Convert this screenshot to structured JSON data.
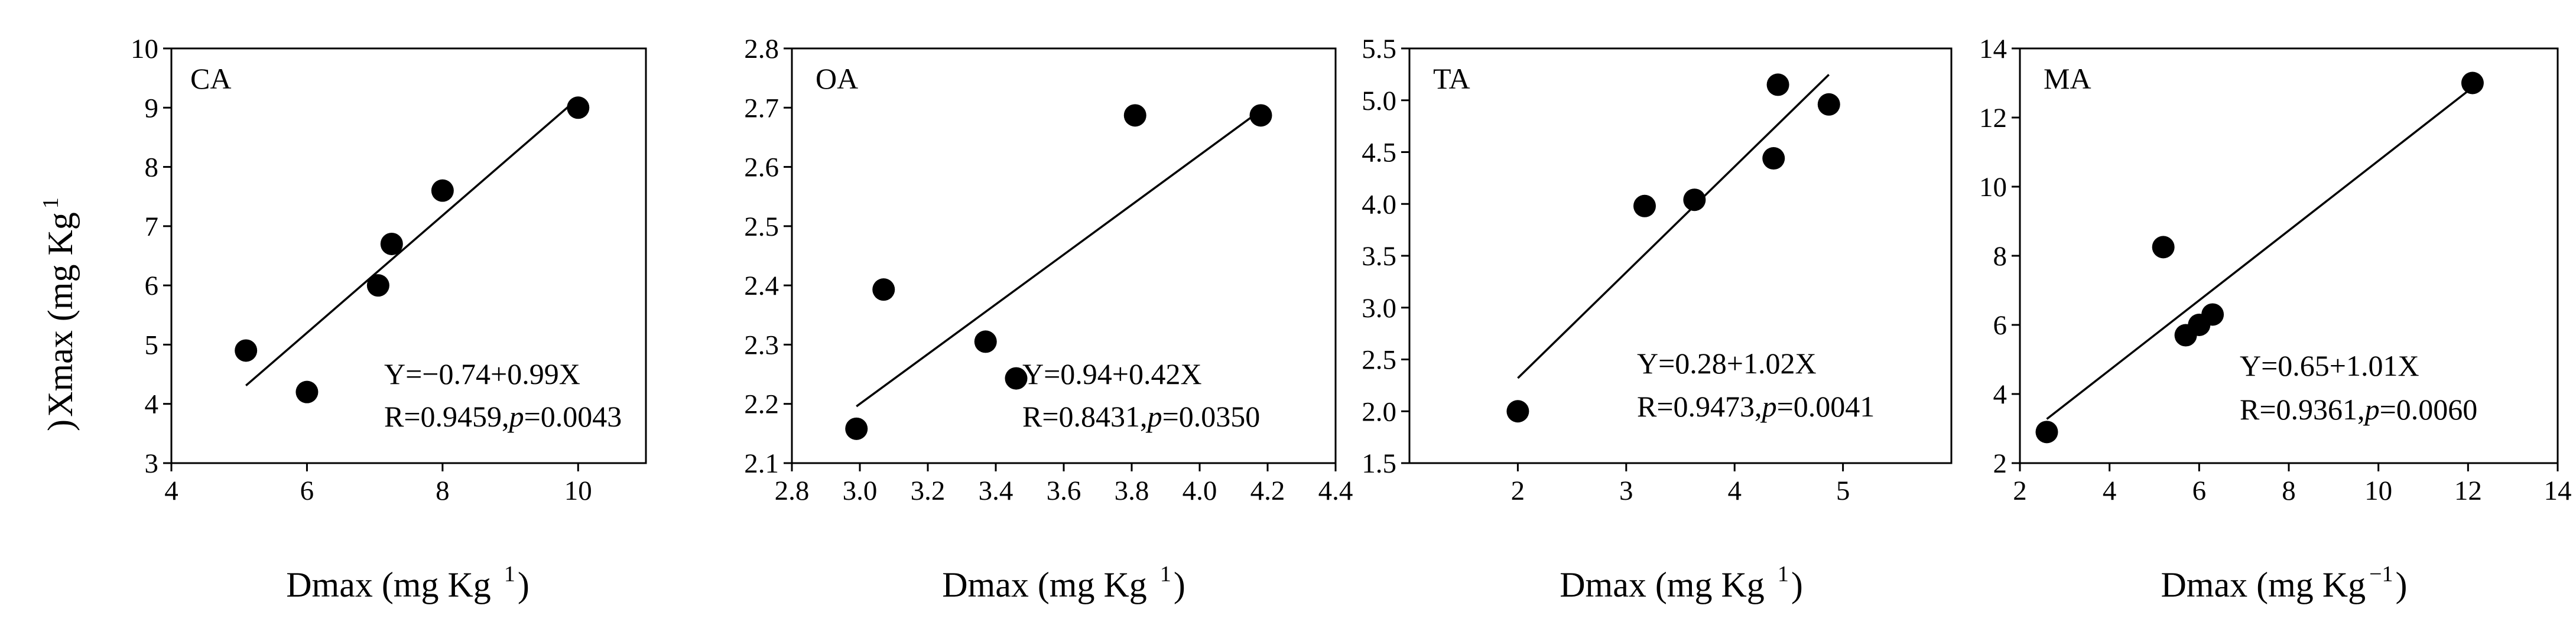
{
  "chart_data": [
    {
      "type": "scatter",
      "name": "CA",
      "label": "CA",
      "xlabel": "Dmax (mg Kg",
      "xlabel_sup": "1",
      "ylabel": "Xmax (mg Kg",
      "ylabel_sup": "1",
      "xlim": [
        4,
        11
      ],
      "ylim": [
        3,
        10
      ],
      "xticks": [
        4,
        6,
        8,
        10
      ],
      "xtick_labels": [
        "4",
        "6",
        "8",
        "10"
      ],
      "yticks": [
        3,
        4,
        5,
        6,
        7,
        8,
        9,
        10
      ],
      "ytick_labels": [
        "3",
        "4",
        "5",
        "6",
        "7",
        "8",
        "9",
        "10"
      ],
      "points": [
        {
          "x": 5.1,
          "y": 4.9
        },
        {
          "x": 6.0,
          "y": 4.2
        },
        {
          "x": 7.05,
          "y": 6.0
        },
        {
          "x": 7.25,
          "y": 6.7
        },
        {
          "x": 8.0,
          "y": 7.6
        },
        {
          "x": 10.0,
          "y": 9.0
        }
      ],
      "fit": {
        "intercept": -0.74,
        "slope": 0.99,
        "x_range": [
          5.1,
          10.0
        ]
      },
      "equation": "Y=−0.74+0.99X",
      "stats_prefix": "R=0.9459,",
      "p_symbol": "p",
      "p_value": "=0.0043",
      "equation_position": "bottom-right"
    },
    {
      "type": "scatter",
      "name": "OA",
      "label": "OA",
      "xlabel": "Dmax (mg Kg",
      "xlabel_sup": "1",
      "xlim": [
        2.8,
        4.4
      ],
      "ylim": [
        2.1,
        2.8
      ],
      "xticks": [
        2.8,
        3.0,
        3.2,
        3.4,
        3.6,
        3.8,
        4.0,
        4.2,
        4.4
      ],
      "xtick_labels": [
        "2.8",
        "3.0",
        "3.2",
        "3.4",
        "3.6",
        "3.8",
        "4.0",
        "4.2",
        "4.4"
      ],
      "yticks": [
        2.1,
        2.2,
        2.3,
        2.4,
        2.5,
        2.6,
        2.7,
        2.8
      ],
      "ytick_labels": [
        "2.1",
        "2.2",
        "2.3",
        "2.4",
        "2.5",
        "2.6",
        "2.7",
        "2.8"
      ],
      "points": [
        {
          "x": 2.99,
          "y": 2.158
        },
        {
          "x": 3.07,
          "y": 2.393
        },
        {
          "x": 3.37,
          "y": 2.305
        },
        {
          "x": 3.46,
          "y": 2.243
        },
        {
          "x": 3.81,
          "y": 2.687
        },
        {
          "x": 4.18,
          "y": 2.687
        }
      ],
      "fit": {
        "intercept": 0.94,
        "slope": 0.42,
        "x_range": [
          2.99,
          4.18
        ]
      },
      "equation": "Y=0.94+0.42X",
      "stats_prefix": "R=0.8431,",
      "p_symbol": "p",
      "p_value": "=0.0350",
      "equation_position": "bottom-right"
    },
    {
      "type": "scatter",
      "name": "TA",
      "label": "TA",
      "xlabel": "Dmax (mg Kg",
      "xlabel_sup": "1",
      "xlim": [
        1,
        6
      ],
      "ylim": [
        1.5,
        5.5
      ],
      "xticks": [
        2,
        3,
        4,
        5
      ],
      "xtick_labels": [
        "2",
        "3",
        "4",
        "5"
      ],
      "yticks": [
        1.5,
        2.0,
        2.5,
        3.0,
        3.5,
        4.0,
        4.5,
        5.0,
        5.5
      ],
      "ytick_labels": [
        "1.5",
        "2.0",
        "2.5",
        "3.0",
        "3.5",
        "4.0",
        "4.5",
        "5.0",
        "5.5"
      ],
      "points": [
        {
          "x": 2.0,
          "y": 2.0
        },
        {
          "x": 3.17,
          "y": 3.98
        },
        {
          "x": 3.63,
          "y": 4.04
        },
        {
          "x": 4.36,
          "y": 4.44
        },
        {
          "x": 4.4,
          "y": 5.15
        },
        {
          "x": 4.87,
          "y": 4.96
        }
      ],
      "fit": {
        "intercept": 0.28,
        "slope": 1.02,
        "x_range": [
          2.0,
          4.87
        ]
      },
      "equation": "Y=0.28+1.02X",
      "stats_prefix": "R=0.9473,",
      "p_symbol": "p",
      "p_value": "=0.0041",
      "equation_position": "bottom-right"
    },
    {
      "type": "scatter",
      "name": "MA",
      "label": "MA",
      "xlabel": "Dmax (mg Kg",
      "xlabel_sup": "−1",
      "xlim": [
        2,
        14
      ],
      "ylim": [
        2,
        14
      ],
      "xticks": [
        2,
        4,
        6,
        8,
        10,
        12,
        14
      ],
      "xtick_labels": [
        "2",
        "4",
        "6",
        "8",
        "10",
        "12",
        "14"
      ],
      "yticks": [
        2,
        4,
        6,
        8,
        10,
        12,
        14
      ],
      "ytick_labels": [
        "2",
        "4",
        "6",
        "8",
        "10",
        "12",
        "14"
      ],
      "points": [
        {
          "x": 2.6,
          "y": 2.9
        },
        {
          "x": 5.2,
          "y": 8.25
        },
        {
          "x": 5.7,
          "y": 5.7
        },
        {
          "x": 6.0,
          "y": 6.0
        },
        {
          "x": 6.3,
          "y": 6.3
        },
        {
          "x": 12.1,
          "y": 13.0
        }
      ],
      "fit": {
        "intercept": 0.65,
        "slope": 1.01,
        "x_range": [
          2.6,
          12.1
        ]
      },
      "equation": "Y=0.65+1.01X",
      "stats_prefix": "R=0.9361,",
      "p_symbol": "p",
      "p_value": "=0.0060",
      "equation_position": "bottom-right"
    }
  ]
}
